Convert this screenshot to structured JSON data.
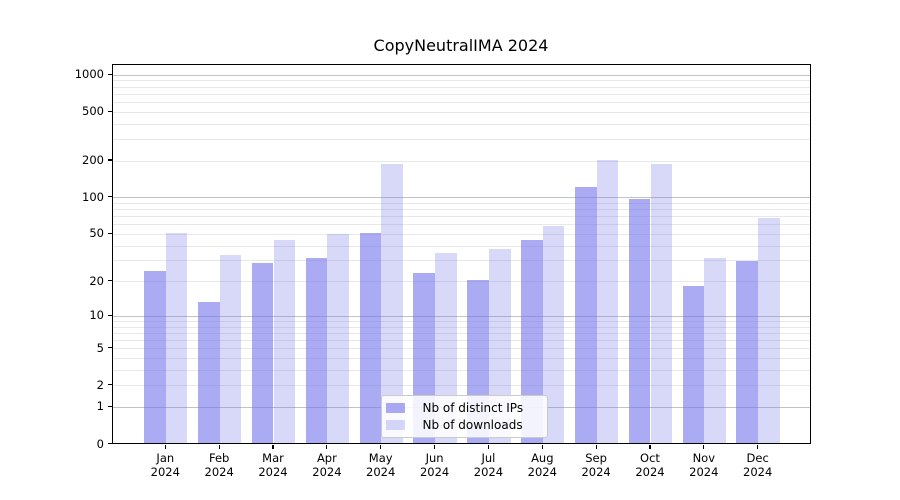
{
  "title": "CopyNeutralIMA 2024",
  "chart_data": {
    "type": "bar",
    "title": "CopyNeutralIMA 2024",
    "categories": [
      "Jan",
      "Feb",
      "Mar",
      "Apr",
      "May",
      "Jun",
      "Jul",
      "Aug",
      "Sep",
      "Oct",
      "Nov",
      "Dec"
    ],
    "x_tick_year": "2024",
    "series": [
      {
        "name": "Nb of distinct IPs",
        "color": "rgba(120,120,235,0.62)",
        "values": [
          24,
          13,
          28,
          31,
          50,
          23,
          20,
          44,
          120,
          95,
          18,
          29
        ]
      },
      {
        "name": "Nb of downloads",
        "color": "rgba(120,120,235,0.29)",
        "values": [
          50,
          33,
          44,
          49,
          183,
          34,
          37,
          57,
          200,
          185,
          31,
          66
        ]
      }
    ],
    "y_axis": {
      "scale": "log10(1+v)",
      "tick_values": [
        0,
        1,
        2,
        5,
        10,
        20,
        50,
        100,
        200,
        500,
        1000
      ],
      "ylim": [
        0,
        1186
      ]
    },
    "grid": {
      "on": true,
      "major_values": [
        1,
        10,
        100,
        1000
      ],
      "major_color": "#c3c3c3",
      "minor_color": "#e8e8e8"
    },
    "legend_position": "lower center"
  },
  "colors": {
    "background": "#ffffff",
    "bar_base": "#7878eb",
    "spine": "#000000",
    "text": "#000000"
  }
}
